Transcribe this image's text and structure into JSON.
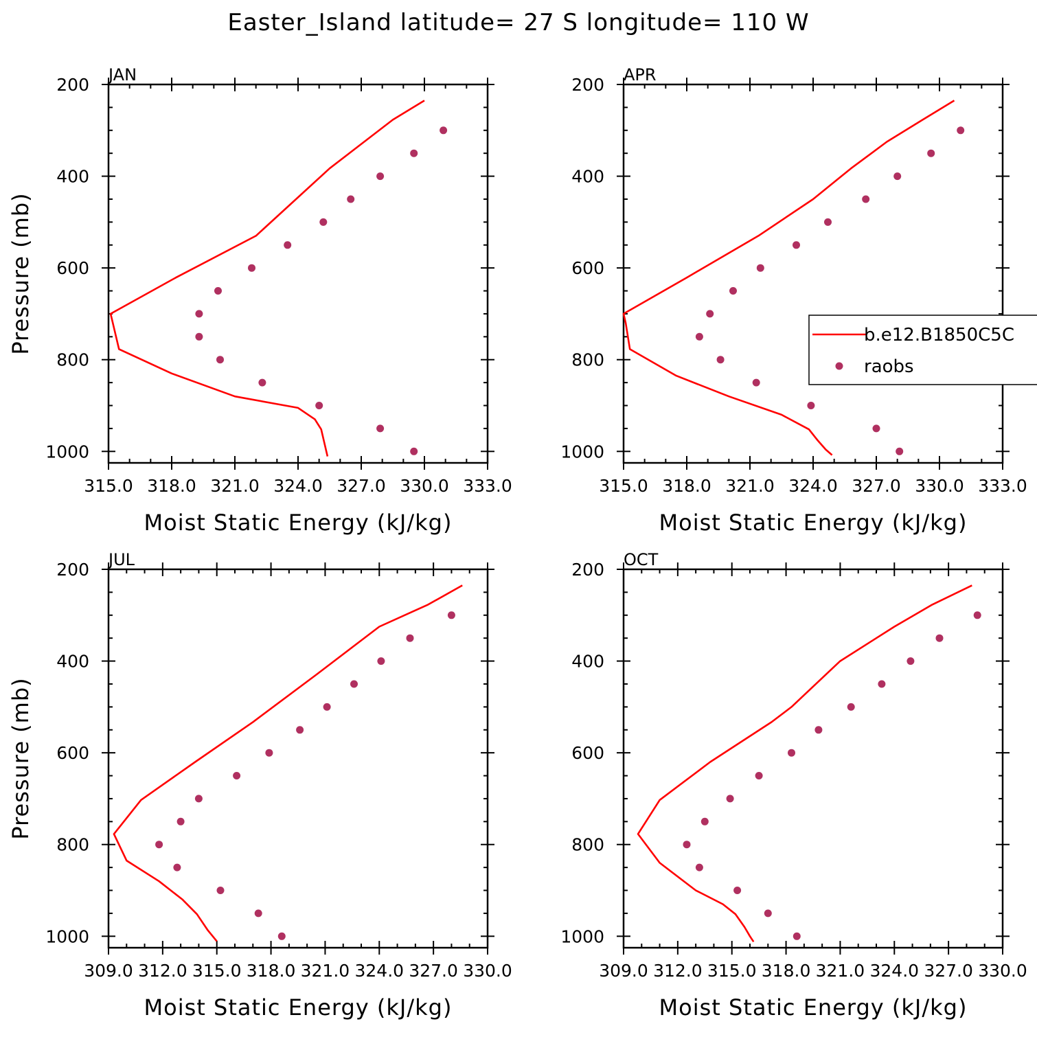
{
  "title": "Easter_Island  latitude= 27 S longitude= 110 W",
  "colors": {
    "model": "#ff0000",
    "obs": "#b03060"
  },
  "legend": {
    "model_label": "b.e12.B1850C5C",
    "obs_label": "raobs"
  },
  "chart_data": [
    {
      "type": "line",
      "panel": "JAN",
      "xlabel": "Moist Static Energy (kJ/kg)",
      "ylabel": "Pressure (mb)",
      "xlim": [
        315,
        333
      ],
      "xticks": [
        315,
        318,
        321,
        324,
        327,
        330,
        333
      ],
      "xtick_labels": [
        "315.0",
        "318.0",
        "321.0",
        "324.0",
        "327.0",
        "330.0",
        "333.0"
      ],
      "ylim": [
        1025,
        200
      ],
      "yticks": [
        200,
        400,
        600,
        800,
        1000
      ],
      "series": [
        {
          "name": "b.e12.B1850C5C",
          "style": "line",
          "x": [
            330.0,
            328.5,
            325.5,
            322.0,
            318.2,
            315.1,
            315.5,
            318.0,
            321.0,
            324.0,
            324.8,
            325.1,
            325.4
          ],
          "y": [
            235,
            277,
            383,
            530,
            621,
            700,
            777,
            830,
            880,
            905,
            930,
            952,
            1011
          ]
        },
        {
          "name": "raobs",
          "style": "markers",
          "x": [
            330.9,
            329.5,
            327.9,
            326.5,
            325.2,
            323.5,
            321.8,
            320.2,
            319.3,
            319.3,
            320.3,
            322.3,
            325.0,
            327.9,
            329.5
          ],
          "y": [
            300,
            350,
            400,
            450,
            500,
            550,
            600,
            650,
            700,
            750,
            800,
            850,
            900,
            950,
            1000
          ]
        }
      ]
    },
    {
      "type": "line",
      "panel": "APR",
      "xlabel": "Moist Static Energy (kJ/kg)",
      "ylabel": "",
      "xlim": [
        315,
        333
      ],
      "xticks": [
        315,
        318,
        321,
        324,
        327,
        330,
        333
      ],
      "xtick_labels": [
        "315.0",
        "318.0",
        "321.0",
        "324.0",
        "327.0",
        "330.0",
        "333.0"
      ],
      "ylim": [
        1025,
        200
      ],
      "yticks": [
        200,
        400,
        600,
        800,
        1000
      ],
      "series": [
        {
          "name": "b.e12.B1850C5C",
          "style": "line",
          "x": [
            330.7,
            329.2,
            327.5,
            325.8,
            324.0,
            321.4,
            318.0,
            315.0,
            315.1,
            315.3,
            317.5,
            320.0,
            322.5,
            323.8,
            324.2,
            324.6,
            324.9
          ],
          "y": [
            235,
            277,
            325,
            383,
            450,
            530,
            621,
            700,
            720,
            777,
            835,
            880,
            920,
            952,
            975,
            996,
            1008
          ]
        },
        {
          "name": "raobs",
          "style": "markers",
          "x": [
            331.0,
            329.6,
            328.0,
            326.5,
            324.7,
            323.2,
            321.5,
            320.2,
            319.1,
            318.6,
            319.6,
            321.3,
            323.9,
            327.0,
            328.1
          ],
          "y": [
            300,
            350,
            400,
            450,
            500,
            550,
            600,
            650,
            700,
            750,
            800,
            850,
            900,
            950,
            1000
          ]
        }
      ],
      "legend_position": "right"
    },
    {
      "type": "line",
      "panel": "JUL",
      "xlabel": "Moist Static Energy (kJ/kg)",
      "ylabel": "Pressure (mb)",
      "xlim": [
        309,
        330
      ],
      "xticks": [
        309,
        312,
        315,
        318,
        321,
        324,
        327,
        330
      ],
      "xtick_labels": [
        "309.0",
        "312.0",
        "315.0",
        "318.0",
        "321.0",
        "324.0",
        "327.0",
        "330.0"
      ],
      "ylim": [
        1025,
        200
      ],
      "yticks": [
        200,
        400,
        600,
        800,
        1000
      ],
      "series": [
        {
          "name": "b.e12.B1850C5C",
          "style": "line",
          "x": [
            328.6,
            326.7,
            324.0,
            320.5,
            317.0,
            313.8,
            310.8,
            309.3,
            310.0,
            311.8,
            313.1,
            313.9,
            314.5,
            315.0
          ],
          "y": [
            235,
            277,
            325,
            430,
            533,
            620,
            703,
            777,
            835,
            880,
            920,
            952,
            987,
            1011
          ]
        },
        {
          "name": "raobs",
          "style": "markers",
          "x": [
            328.0,
            325.7,
            324.1,
            322.6,
            321.1,
            319.6,
            317.9,
            316.1,
            314.0,
            313.0,
            311.8,
            312.8,
            315.2,
            317.3,
            318.6
          ],
          "y": [
            300,
            350,
            400,
            450,
            500,
            550,
            600,
            650,
            700,
            750,
            800,
            850,
            900,
            950,
            1000
          ]
        }
      ]
    },
    {
      "type": "line",
      "panel": "OCT",
      "xlabel": "Moist Static Energy (kJ/kg)",
      "ylabel": "",
      "xlim": [
        309,
        330
      ],
      "xticks": [
        309,
        312,
        315,
        318,
        321,
        324,
        327,
        330
      ],
      "xtick_labels": [
        "309.0",
        "312.0",
        "315.0",
        "318.0",
        "321.0",
        "324.0",
        "327.0",
        "330.0"
      ],
      "ylim": [
        1025,
        200
      ],
      "yticks": [
        200,
        400,
        600,
        800,
        1000
      ],
      "series": [
        {
          "name": "b.e12.B1850C5C",
          "style": "line",
          "x": [
            328.3,
            326.1,
            324.0,
            321.0,
            318.3,
            317.2,
            313.8,
            311.0,
            309.8,
            311.0,
            313.0,
            314.5,
            315.2,
            315.7,
            316.0,
            316.2
          ],
          "y": [
            235,
            277,
            325,
            400,
            500,
            533,
            620,
            703,
            777,
            840,
            900,
            930,
            952,
            980,
            1000,
            1012
          ]
        },
        {
          "name": "raobs",
          "style": "markers",
          "x": [
            328.6,
            326.5,
            324.9,
            323.3,
            321.6,
            319.8,
            318.3,
            316.5,
            314.9,
            313.5,
            312.5,
            313.2,
            315.3,
            317.0,
            318.6
          ],
          "y": [
            300,
            350,
            400,
            450,
            500,
            550,
            600,
            650,
            700,
            750,
            800,
            850,
            900,
            950,
            1000
          ]
        }
      ]
    }
  ]
}
